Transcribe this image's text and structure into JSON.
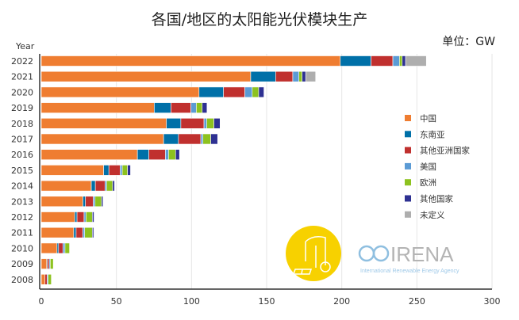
{
  "chart_data": {
    "type": "bar",
    "orientation": "horizontal",
    "stacked": true,
    "title": "各国/地区的太阳能光伏模块生产",
    "unit_label": "单位：GW",
    "ylabel": "Year",
    "xlabel": "",
    "xlim": [
      0,
      300
    ],
    "xticks": [
      0,
      50,
      100,
      150,
      200,
      250,
      300
    ],
    "grid": true,
    "legend_position": "right",
    "categories": [
      "2022",
      "2021",
      "2020",
      "2019",
      "2018",
      "2017",
      "2016",
      "2015",
      "2014",
      "2013",
      "2012",
      "2011",
      "2010",
      "2009",
      "2008"
    ],
    "series": [
      {
        "name": "中国",
        "color": "#ef7d31",
        "values": [
          199,
          139.4,
          105,
          75.2,
          83.3,
          81.4,
          64,
          41.5,
          33.3,
          27.7,
          22.3,
          21.6,
          10.5,
          3.6,
          2.5
        ]
      },
      {
        "name": "东南亚",
        "color": "#0070a8",
        "values": [
          20.5,
          16.6,
          16.3,
          11.1,
          9.6,
          9.9,
          7.6,
          3.5,
          2.7,
          1.7,
          1.5,
          1.6,
          1,
          0.5,
          0
        ]
      },
      {
        "name": "其他亚洲国家",
        "color": "#c0302e",
        "values": [
          14.5,
          11.4,
          14.2,
          13.3,
          15.4,
          14.9,
          11,
          7.5,
          6.4,
          5.2,
          4.7,
          4.4,
          2.9,
          1.2,
          1.4
        ]
      },
      {
        "name": "美国",
        "color": "#5b9bd5",
        "values": [
          4.4,
          4.1,
          4.9,
          3.6,
          1.8,
          1.4,
          2.1,
          1.4,
          1.1,
          1.2,
          1.3,
          1.3,
          1.4,
          0.7,
          0.7
        ]
      },
      {
        "name": "欧洲",
        "color": "#8dc21f",
        "values": [
          1.8,
          2.1,
          4.3,
          3.9,
          4.8,
          5.2,
          4.7,
          3.5,
          4,
          4.3,
          4.2,
          5.1,
          3,
          2,
          2.1
        ]
      },
      {
        "name": "其他国家",
        "color": "#2e3192",
        "values": [
          2.3,
          2.4,
          3.5,
          3.2,
          4.1,
          4.6,
          2.6,
          2,
          1.3,
          1,
          1.1,
          0.9,
          0,
          0,
          0
        ]
      },
      {
        "name": "未定义",
        "color": "#aeaeae",
        "values": [
          13.8,
          6.6,
          0,
          0,
          0,
          0,
          0,
          0,
          0,
          0,
          0,
          0,
          0,
          0,
          0
        ]
      }
    ]
  },
  "logo": {
    "name": "IRENA",
    "subtitle": "International Renewable Energy Agency"
  }
}
